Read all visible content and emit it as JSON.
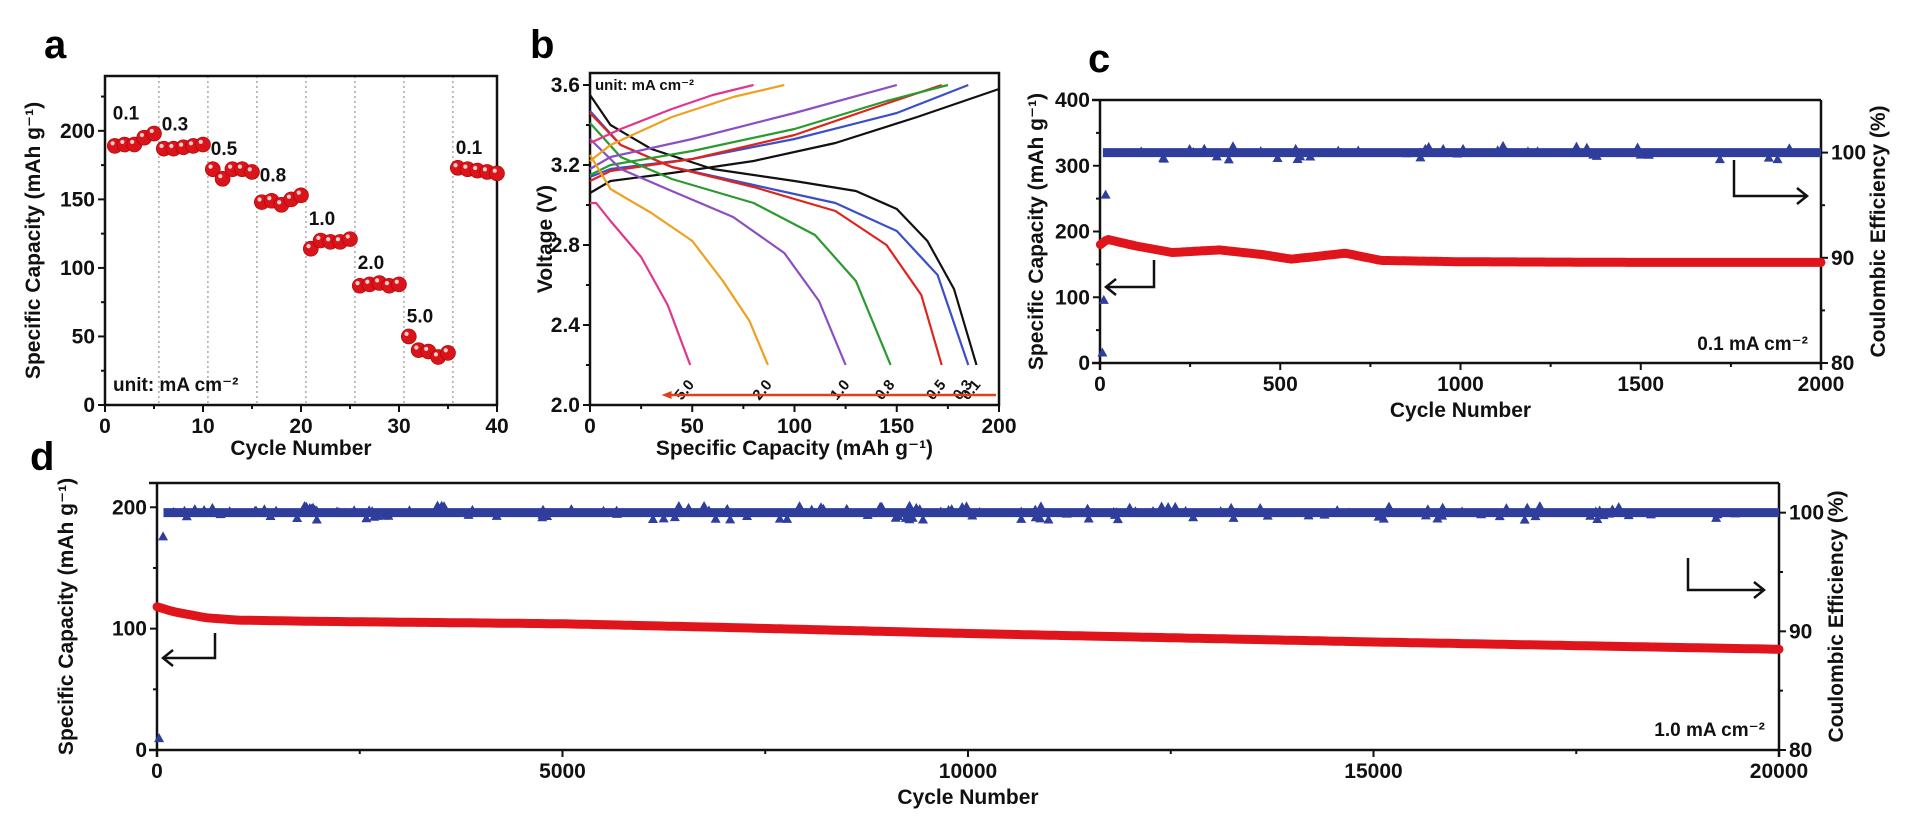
{
  "chart_data": [
    {
      "id": "a",
      "type": "scatter",
      "panel_label": "a",
      "title": "",
      "xlabel": "Cycle Number",
      "ylabel": "Specific Capacity (mAh g⁻¹)",
      "xlim": [
        0,
        40
      ],
      "ylim": [
        0,
        240
      ],
      "xticks": [
        0,
        10,
        20,
        30,
        40
      ],
      "yticks": [
        0,
        50,
        100,
        150,
        200
      ],
      "grid": "vertical dotted separators between rate steps",
      "annotation": "unit: mA cm⁻²",
      "separators": [
        5.5,
        10.5,
        15.5,
        20.5,
        25.5,
        30.5,
        35.5
      ],
      "color": "#e0141b",
      "groups": [
        {
          "rate": "0.1",
          "x": [
            1,
            2,
            3,
            4,
            5
          ],
          "y": [
            189,
            190,
            190,
            195,
            198
          ]
        },
        {
          "rate": "0.3",
          "x": [
            6,
            7,
            8,
            9,
            10
          ],
          "y": [
            187,
            187,
            188,
            189,
            190
          ]
        },
        {
          "rate": "0.5",
          "x": [
            11,
            12,
            13,
            14,
            15
          ],
          "y": [
            172,
            165,
            172,
            172,
            170
          ]
        },
        {
          "rate": "0.8",
          "x": [
            16,
            17,
            18,
            19,
            20
          ],
          "y": [
            148,
            149,
            146,
            150,
            153
          ]
        },
        {
          "rate": "1.0",
          "x": [
            21,
            22,
            23,
            24,
            25
          ],
          "y": [
            114,
            120,
            119,
            119,
            121
          ]
        },
        {
          "rate": "2.0",
          "x": [
            26,
            27,
            28,
            29,
            30
          ],
          "y": [
            87,
            88,
            89,
            87,
            88
          ]
        },
        {
          "rate": "5.0",
          "x": [
            31,
            32,
            33,
            34,
            35
          ],
          "y": [
            50,
            40,
            39,
            35,
            38
          ]
        },
        {
          "rate": "0.1",
          "x": [
            36,
            37,
            38,
            39,
            40
          ],
          "y": [
            173,
            172,
            171,
            170,
            169
          ]
        }
      ]
    },
    {
      "id": "b",
      "type": "line",
      "panel_label": "b",
      "title": "",
      "xlabel": "Specific Capacity (mAh g⁻¹)",
      "ylabel": "Voltage (V)",
      "xlim": [
        0,
        200
      ],
      "ylim": [
        2.0,
        3.66
      ],
      "xticks": [
        0,
        50,
        100,
        150,
        200
      ],
      "yticks": [
        2.0,
        2.4,
        2.8,
        3.2,
        3.6
      ],
      "annotation": "unit:  mA cm⁻²",
      "arrow": {
        "from_x": 200,
        "to_x": 35,
        "y": 2.05,
        "color": "#e0401b"
      },
      "series": [
        {
          "name": "0.1",
          "color": "#111111",
          "charge": [
            [
              0,
              3.06
            ],
            [
              10,
              3.12
            ],
            [
              40,
              3.16
            ],
            [
              80,
              3.22
            ],
            [
              120,
              3.31
            ],
            [
              160,
              3.44
            ],
            [
              200,
              3.58
            ]
          ],
          "discharge": [
            [
              0,
              3.55
            ],
            [
              10,
              3.4
            ],
            [
              30,
              3.28
            ],
            [
              60,
              3.18
            ],
            [
              100,
              3.12
            ],
            [
              130,
              3.07
            ],
            [
              150,
              2.98
            ],
            [
              165,
              2.82
            ],
            [
              178,
              2.58
            ],
            [
              189,
              2.2
            ]
          ]
        },
        {
          "name": "0.3",
          "color": "#3b4fc8",
          "charge": [
            [
              0,
              3.14
            ],
            [
              10,
              3.18
            ],
            [
              50,
              3.23
            ],
            [
              100,
              3.33
            ],
            [
              150,
              3.46
            ],
            [
              185,
              3.6
            ]
          ],
          "discharge": [
            [
              0,
              3.47
            ],
            [
              15,
              3.3
            ],
            [
              40,
              3.19
            ],
            [
              80,
              3.1
            ],
            [
              120,
              3.01
            ],
            [
              150,
              2.87
            ],
            [
              170,
              2.65
            ],
            [
              185,
              2.2
            ]
          ]
        },
        {
          "name": "0.5",
          "color": "#e0231b",
          "charge": [
            [
              0,
              3.12
            ],
            [
              10,
              3.17
            ],
            [
              50,
              3.23
            ],
            [
              100,
              3.35
            ],
            [
              140,
              3.49
            ],
            [
              172,
              3.6
            ]
          ],
          "discharge": [
            [
              0,
              3.46
            ],
            [
              15,
              3.3
            ],
            [
              40,
              3.19
            ],
            [
              80,
              3.09
            ],
            [
              120,
              2.97
            ],
            [
              145,
              2.8
            ],
            [
              162,
              2.55
            ],
            [
              172,
              2.2
            ]
          ]
        },
        {
          "name": "0.8",
          "color": "#2a9a2e",
          "charge": [
            [
              0,
              3.15
            ],
            [
              10,
              3.2
            ],
            [
              50,
              3.27
            ],
            [
              100,
              3.38
            ],
            [
              145,
              3.52
            ],
            [
              175,
              3.6
            ]
          ],
          "discharge": [
            [
              0,
              3.41
            ],
            [
              15,
              3.24
            ],
            [
              40,
              3.13
            ],
            [
              80,
              3.01
            ],
            [
              110,
              2.85
            ],
            [
              130,
              2.62
            ],
            [
              147,
              2.2
            ]
          ]
        },
        {
          "name": "1.0",
          "color": "#8a4fc0",
          "charge": [
            [
              0,
              3.18
            ],
            [
              10,
              3.24
            ],
            [
              50,
              3.33
            ],
            [
              100,
              3.46
            ],
            [
              150,
              3.6
            ]
          ],
          "discharge": [
            [
              0,
              3.33
            ],
            [
              15,
              3.18
            ],
            [
              40,
              3.07
            ],
            [
              70,
              2.94
            ],
            [
              95,
              2.76
            ],
            [
              112,
              2.52
            ],
            [
              125,
              2.2
            ]
          ]
        },
        {
          "name": "2.0",
          "color": "#f0a020",
          "charge": [
            [
              0,
              3.22
            ],
            [
              10,
              3.3
            ],
            [
              40,
              3.44
            ],
            [
              70,
              3.54
            ],
            [
              95,
              3.6
            ]
          ],
          "discharge": [
            [
              0,
              3.25
            ],
            [
              10,
              3.08
            ],
            [
              30,
              2.96
            ],
            [
              50,
              2.82
            ],
            [
              65,
              2.62
            ],
            [
              78,
              2.42
            ],
            [
              87,
              2.2
            ]
          ]
        },
        {
          "name": "5.0",
          "color": "#e0368c",
          "charge": [
            [
              0,
              3.31
            ],
            [
              15,
              3.38
            ],
            [
              40,
              3.48
            ],
            [
              60,
              3.55
            ],
            [
              80,
              3.6
            ]
          ],
          "discharge": [
            [
              0,
              3.01
            ],
            [
              3,
              3.01
            ],
            [
              10,
              2.92
            ],
            [
              25,
              2.74
            ],
            [
              38,
              2.5
            ],
            [
              49,
              2.2
            ]
          ]
        }
      ]
    },
    {
      "id": "c",
      "type": "scatter",
      "panel_label": "c",
      "title": "",
      "xlabel": "Cycle Number",
      "ylabel": "Specific Capacity (mAh g⁻¹)",
      "ylabel_right": "Coulombic Efficiency (%)",
      "xlim": [
        0,
        2000
      ],
      "ylim": [
        0,
        400
      ],
      "ylim_right": [
        80,
        105
      ],
      "xticks": [
        0,
        500,
        1000,
        1500,
        2000
      ],
      "yticks": [
        0,
        100,
        200,
        300,
        400
      ],
      "yticks_right": [
        80,
        90,
        100
      ],
      "annotation": "0.1 mA cm⁻²",
      "series": [
        {
          "name": "Specific Capacity",
          "axis": "left",
          "color": "#e0141b",
          "marker": "circle",
          "x": [
            1,
            20,
            100,
            200,
            330,
            450,
            530,
            600,
            680,
            780,
            1000,
            1500,
            2000
          ],
          "y": [
            180,
            188,
            178,
            168,
            172,
            165,
            158,
            162,
            167,
            156,
            154,
            153,
            153
          ]
        },
        {
          "name": "Coulombic Efficiency",
          "axis": "right",
          "color": "#2f3d9c",
          "marker": "triangle",
          "x": [
            1,
            5,
            10,
            20,
            500,
            1000,
            1500,
            2000
          ],
          "y": [
            81,
            86,
            96,
            100,
            100,
            100,
            100,
            100
          ]
        }
      ]
    },
    {
      "id": "d",
      "type": "scatter",
      "panel_label": "d",
      "title": "",
      "xlabel": "Cycle Number",
      "ylabel": "Specific Capacity (mAh g⁻¹)",
      "ylabel_right": "Coulombic Efficiency (%)",
      "xlim": [
        0,
        20000
      ],
      "ylim": [
        0,
        220
      ],
      "ylim_right": [
        80,
        102.5
      ],
      "xticks": [
        0,
        5000,
        10000,
        15000,
        20000
      ],
      "yticks": [
        0,
        100,
        200
      ],
      "yticks_right": [
        80,
        90,
        100
      ],
      "annotation": "1.0  mA cm⁻²",
      "series": [
        {
          "name": "Specific Capacity",
          "axis": "left",
          "color": "#e0141b",
          "marker": "circle",
          "x": [
            1,
            200,
            600,
            1000,
            2000,
            5000,
            7000,
            10000,
            15000,
            20000
          ],
          "y": [
            118,
            114,
            109,
            107,
            106,
            104,
            101,
            96,
            89,
            83
          ]
        },
        {
          "name": "Coulombic Efficiency",
          "axis": "right",
          "color": "#2f3d9c",
          "marker": "triangle",
          "x": [
            1,
            50,
            200,
            5000,
            10000,
            15000,
            20000
          ],
          "y": [
            81,
            98,
            100,
            100,
            100,
            100,
            100
          ]
        }
      ]
    }
  ]
}
